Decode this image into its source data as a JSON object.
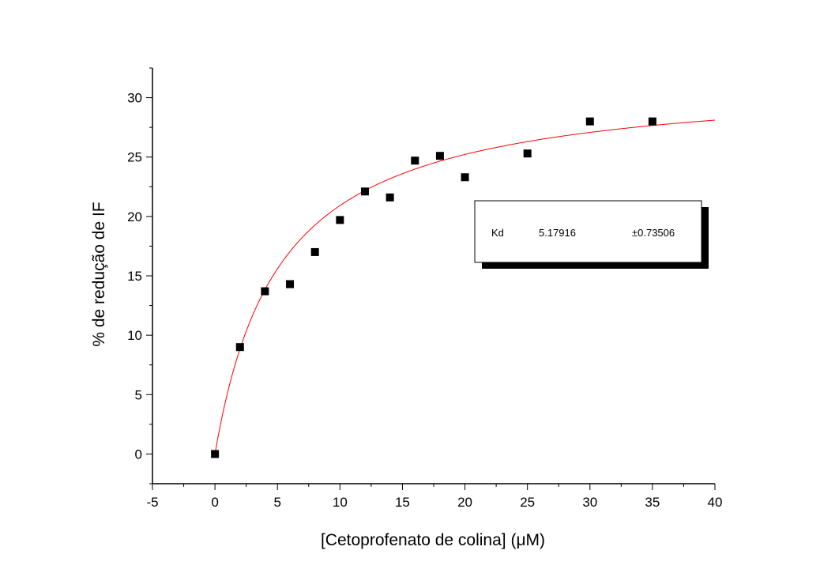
{
  "chart_data": {
    "type": "scatter",
    "xlabel": "[Cetoprofenato de colina] (μM)",
    "ylabel": "% de redução de IF",
    "xlim": [
      -5,
      40
    ],
    "ylim": [
      -2.5,
      32.5
    ],
    "x_ticks": [
      -5,
      0,
      5,
      10,
      15,
      20,
      25,
      30,
      35,
      40
    ],
    "y_ticks": [
      0,
      5,
      10,
      15,
      20,
      25,
      30
    ],
    "grid": false,
    "series": [
      {
        "marker": "square",
        "color": "#000000",
        "points": [
          {
            "x": 0,
            "y": 0
          },
          {
            "x": 2,
            "y": 9.0
          },
          {
            "x": 4,
            "y": 13.7
          },
          {
            "x": 6,
            "y": 14.3
          },
          {
            "x": 8,
            "y": 17.0
          },
          {
            "x": 10,
            "y": 19.7
          },
          {
            "x": 12,
            "y": 22.1
          },
          {
            "x": 14,
            "y": 21.6
          },
          {
            "x": 16,
            "y": 24.7
          },
          {
            "x": 18,
            "y": 25.1
          },
          {
            "x": 20,
            "y": 23.3
          },
          {
            "x": 25,
            "y": 25.3
          },
          {
            "x": 30,
            "y": 28.0
          },
          {
            "x": 35,
            "y": 28.0
          }
        ]
      },
      {
        "type": "line",
        "color": "#ff0000",
        "fit": {
          "model": "hyperbolic",
          "Bmax": 31.75,
          "Kd": 5.17916,
          "x_range": [
            0,
            40
          ]
        }
      }
    ],
    "annotation": {
      "param": "Kd",
      "value": "5.17916",
      "error": "±0.73506"
    }
  }
}
